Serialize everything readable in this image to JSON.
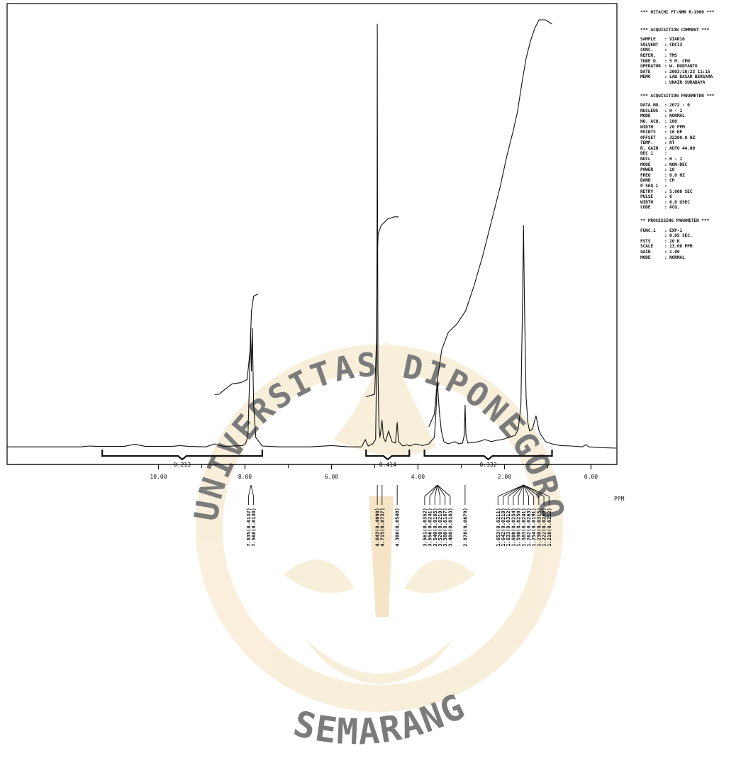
{
  "colors": {
    "ink": "#111111",
    "watermark": "#f2d9a8",
    "watermark_text": "#e6c27a"
  },
  "watermark": {
    "top": "UNIVERSITAS DIPONEGORO",
    "bottom": "SEMARANG"
  },
  "chart_data": {
    "type": "line",
    "title": "",
    "xlabel": "PPM",
    "ylabel": "",
    "x_reversed": true,
    "xlim": [
      13.5,
      -0.6
    ],
    "ylim": [
      0,
      100
    ],
    "grid": false,
    "legend": "none",
    "x_ticks": [
      {
        "value": 10.0,
        "label": "10.00"
      },
      {
        "value": 8.0,
        "label": "8.00"
      },
      {
        "value": 6.0,
        "label": "6.00"
      },
      {
        "value": 4.0,
        "label": "4.00"
      },
      {
        "value": 2.0,
        "label": "2.00"
      },
      {
        "value": 0.0,
        "label": "0.00"
      }
    ],
    "x_minor_ticks": [
      9.0,
      7.0,
      5.0,
      3.0,
      1.0
    ],
    "series": [
      {
        "role": "spectrum",
        "points": [
          [
            13.5,
            0.3
          ],
          [
            11.8,
            0.3
          ],
          [
            11.6,
            0.5
          ],
          [
            11.4,
            0.4
          ],
          [
            10.8,
            0.4
          ],
          [
            10.55,
            0.9
          ],
          [
            10.3,
            0.4
          ],
          [
            9.7,
            0.4
          ],
          [
            9.5,
            0.6
          ],
          [
            9.3,
            0.4
          ],
          [
            8.9,
            0.3
          ],
          [
            8.7,
            1.0
          ],
          [
            8.5,
            0.4
          ],
          [
            8.05,
            0.6
          ],
          [
            7.98,
            1.2
          ],
          [
            7.93,
            3.0
          ],
          [
            7.9,
            14.0
          ],
          [
            7.87,
            27.0
          ],
          [
            7.85,
            18.0
          ],
          [
            7.83,
            28.0
          ],
          [
            7.8,
            10.0
          ],
          [
            7.75,
            2.5
          ],
          [
            7.6,
            0.5
          ],
          [
            7.2,
            0.3
          ],
          [
            6.5,
            0.3
          ],
          [
            6.0,
            0.6
          ],
          [
            5.6,
            0.3
          ],
          [
            5.3,
            0.3
          ],
          [
            5.22,
            2.0
          ],
          [
            5.15,
            0.5
          ],
          [
            5.05,
            1.0
          ],
          [
            4.98,
            2.0
          ],
          [
            4.955,
            20.0
          ],
          [
            4.945,
            55.0
          ],
          [
            4.94,
            99.0
          ],
          [
            4.935,
            60.0
          ],
          [
            4.925,
            18.0
          ],
          [
            4.9,
            5.0
          ],
          [
            4.88,
            2.5
          ],
          [
            4.83,
            6.5
          ],
          [
            4.8,
            2.5
          ],
          [
            4.75,
            1.5
          ],
          [
            4.68,
            4.0
          ],
          [
            4.6,
            1.5
          ],
          [
            4.52,
            1.2
          ],
          [
            4.48,
            6.0
          ],
          [
            4.45,
            1.5
          ],
          [
            4.35,
            0.5
          ],
          [
            4.25,
            0.8
          ],
          [
            4.2,
            0.5
          ],
          [
            4.05,
            1.0
          ],
          [
            3.9,
            0.6
          ],
          [
            3.75,
            1.0
          ],
          [
            3.62,
            2.5
          ],
          [
            3.58,
            9.0
          ],
          [
            3.55,
            16.0
          ],
          [
            3.53,
            12.0
          ],
          [
            3.5,
            8.0
          ],
          [
            3.46,
            4.0
          ],
          [
            3.4,
            1.5
          ],
          [
            3.3,
            1.0
          ],
          [
            3.15,
            1.5
          ],
          [
            3.05,
            1.0
          ],
          [
            2.97,
            1.2
          ],
          [
            2.93,
            3.0
          ],
          [
            2.91,
            10.0
          ],
          [
            2.89,
            3.0
          ],
          [
            2.85,
            1.2
          ],
          [
            2.6,
            1.5
          ],
          [
            2.45,
            2.0
          ],
          [
            2.3,
            1.5
          ],
          [
            2.2,
            1.8
          ],
          [
            2.05,
            2.0
          ],
          [
            1.9,
            2.5
          ],
          [
            1.75,
            3.0
          ],
          [
            1.68,
            4.5
          ],
          [
            1.62,
            10.0
          ],
          [
            1.58,
            35.0
          ],
          [
            1.56,
            52.0
          ],
          [
            1.54,
            35.0
          ],
          [
            1.5,
            12.0
          ],
          [
            1.46,
            6.0
          ],
          [
            1.42,
            4.0
          ],
          [
            1.35,
            4.5
          ],
          [
            1.3,
            6.5
          ],
          [
            1.27,
            7.5
          ],
          [
            1.24,
            6.0
          ],
          [
            1.2,
            4.0
          ],
          [
            1.15,
            3.0
          ],
          [
            1.05,
            1.5
          ],
          [
            0.9,
            1.0
          ],
          [
            0.7,
            0.6
          ],
          [
            0.45,
            0.5
          ],
          [
            0.2,
            0.3
          ],
          [
            0.12,
            0.8
          ],
          [
            0.05,
            0.3
          ],
          [
            -0.3,
            0.1
          ],
          [
            -0.6,
            0.0
          ]
        ]
      },
      {
        "role": "integral",
        "segments": [
          [
            [
              8.7,
              12.5
            ],
            [
              8.6,
              12.6
            ],
            [
              8.45,
              13.8
            ],
            [
              8.3,
              15.0
            ],
            [
              8.1,
              15.3
            ],
            [
              7.95,
              16.0
            ],
            [
              7.88,
              23.0
            ],
            [
              7.85,
              32.0
            ],
            [
              7.8,
              35.5
            ],
            [
              7.7,
              36.0
            ]
          ],
          [
            [
              5.2,
              12.0
            ],
            [
              5.0,
              12.6
            ],
            [
              4.96,
              25.0
            ],
            [
              4.94,
              45.0
            ],
            [
              4.92,
              50.0
            ],
            [
              4.85,
              52.0
            ],
            [
              4.7,
              53.5
            ],
            [
              4.55,
              54.0
            ],
            [
              4.45,
              54.0
            ]
          ],
          [
            [
              3.75,
              5.0
            ],
            [
              3.62,
              8.0
            ],
            [
              3.55,
              16.0
            ],
            [
              3.45,
              23.0
            ],
            [
              3.3,
              27.0
            ],
            [
              3.1,
              29.0
            ],
            [
              2.9,
              32.0
            ],
            [
              2.7,
              38.0
            ],
            [
              2.5,
              45.0
            ],
            [
              2.3,
              53.0
            ],
            [
              2.1,
              61.0
            ],
            [
              1.95,
              68.0
            ],
            [
              1.8,
              74.0
            ],
            [
              1.7,
              78.5
            ],
            [
              1.6,
              85.0
            ],
            [
              1.5,
              91.0
            ],
            [
              1.4,
              95.0
            ],
            [
              1.3,
              98.0
            ],
            [
              1.2,
              100.0
            ],
            [
              1.05,
              100.0
            ],
            [
              0.9,
              99.0
            ]
          ]
        ]
      }
    ],
    "integrals": [
      {
        "range": [
          11.3,
          7.6
        ],
        "label": "0.213"
      },
      {
        "range": [
          5.2,
          4.2
        ],
        "label": "0.414"
      },
      {
        "range": [
          3.85,
          0.9
        ],
        "label": "0.332"
      }
    ],
    "peak_groups": [
      {
        "x": 7.86,
        "labels": [
          "7.835(0.0132)",
          "7.568(0.0130)"
        ]
      },
      {
        "x": 4.94,
        "labels": [
          "4.643(0.4000)"
        ]
      },
      {
        "x": 4.83,
        "labels": [
          "4.715(0.0737)"
        ]
      },
      {
        "x": 4.48,
        "labels": [
          "4.306(0.0540)"
        ]
      },
      {
        "x": 3.55,
        "labels": [
          "3.561(0.0352)",
          "3.556(0.0241)",
          "3.540(0.0165)",
          "3.520(0.0210)",
          "3.500(0.0167)",
          "3.480(0.0163)"
        ]
      },
      {
        "x": 2.91,
        "labels": [
          "2.878(0.0679)"
        ]
      },
      {
        "x": 1.56,
        "labels": [
          "1.653(0.0211)",
          "1.642(0.0210)",
          "1.633(0.0312)",
          "1.600(0.0254)",
          "1.590(0.0250)",
          "1.583(0.0241)",
          "1.262(0.0263)",
          "1.254(0.0191)",
          "1.230(0.0315)",
          "1.222(0.0269)",
          "1.210(0.0212)"
        ]
      }
    ]
  },
  "params": {
    "header": "*** HITACHI FT-NMR R-1900 ***",
    "sections": [
      {
        "title": "*** ACQUISITION COMMENT ***",
        "rows": [
          {
            "k": "SAMPLE",
            "v": "VIAR10"
          },
          {
            "k": "",
            "v": ""
          },
          {
            "k": "SOLVENT",
            "v": "CDCl3"
          },
          {
            "k": "CONC.",
            "v": ""
          },
          {
            "k": "REFER.",
            "v": "TMS"
          },
          {
            "k": "TUBE D.",
            "v": "5 M. CPN"
          },
          {
            "k": "OPERATOR",
            "v": "W. BUDYANTO"
          },
          {
            "k": "DATE",
            "v": "2003/10/23 11:15"
          },
          {
            "k": "MEMO",
            "v": "LAB DASAR BERSAMA"
          },
          {
            "k": "",
            "v": "UNAIR SURABAYA"
          }
        ]
      },
      {
        "title": "*** ACQUISITION PARAMETER ***",
        "rows": [
          {
            "k": "DATA NO.",
            "v": "2072 -   0"
          },
          {
            "k": "NUCLEUS",
            "v": "H -  1"
          },
          {
            "k": "MODE",
            "v": "NORMAL"
          },
          {
            "k": "NO. ACQ.",
            "v": "    100"
          },
          {
            "k": "WIDTH",
            "v": "    20 PPM"
          },
          {
            "k": "POINTS",
            "v": "    16 KP"
          },
          {
            "k": "OFFSET",
            "v": "32300.0 HZ"
          },
          {
            "k": "TEMP.",
            "v": "    RT"
          },
          {
            "k": "R. GAIN",
            "v": "AUTO      44.00"
          },
          {
            "k": "DEC 1",
            "v": ""
          },
          {
            "k": " NUCL",
            "v": "H -  1"
          },
          {
            "k": " MODE",
            "v": "NON-DEC"
          },
          {
            "k": " POWER",
            "v": "    10"
          },
          {
            "k": " FREQ",
            "v": "   0.0 HZ"
          },
          {
            "k": " BAND",
            "v": "    CH"
          },
          {
            "k": "P SEQ 1",
            "v": ""
          },
          {
            "k": " RETRY",
            "v": " 5.000 SEC"
          },
          {
            "k": " PULSE",
            "v": "    6"
          },
          {
            "k": " WIDTH",
            "v": "   6.0 USEC"
          },
          {
            "k": " CODE",
            "v": "ACQ."
          }
        ]
      },
      {
        "title": "** PROCESSING PARAMETER ***",
        "rows": [
          {
            "k": "FUNC.1",
            "v": "EXP-1"
          },
          {
            "k": "",
            "v": "  0.05 SEC."
          },
          {
            "k": "FSTS",
            "v": "  20 K"
          },
          {
            "k": "SCALE",
            "v": "  13.00 PPM"
          },
          {
            "k": "GAIN",
            "v": "   1.00"
          },
          {
            "k": "MODE",
            "v": "NORMAL"
          }
        ]
      }
    ]
  }
}
